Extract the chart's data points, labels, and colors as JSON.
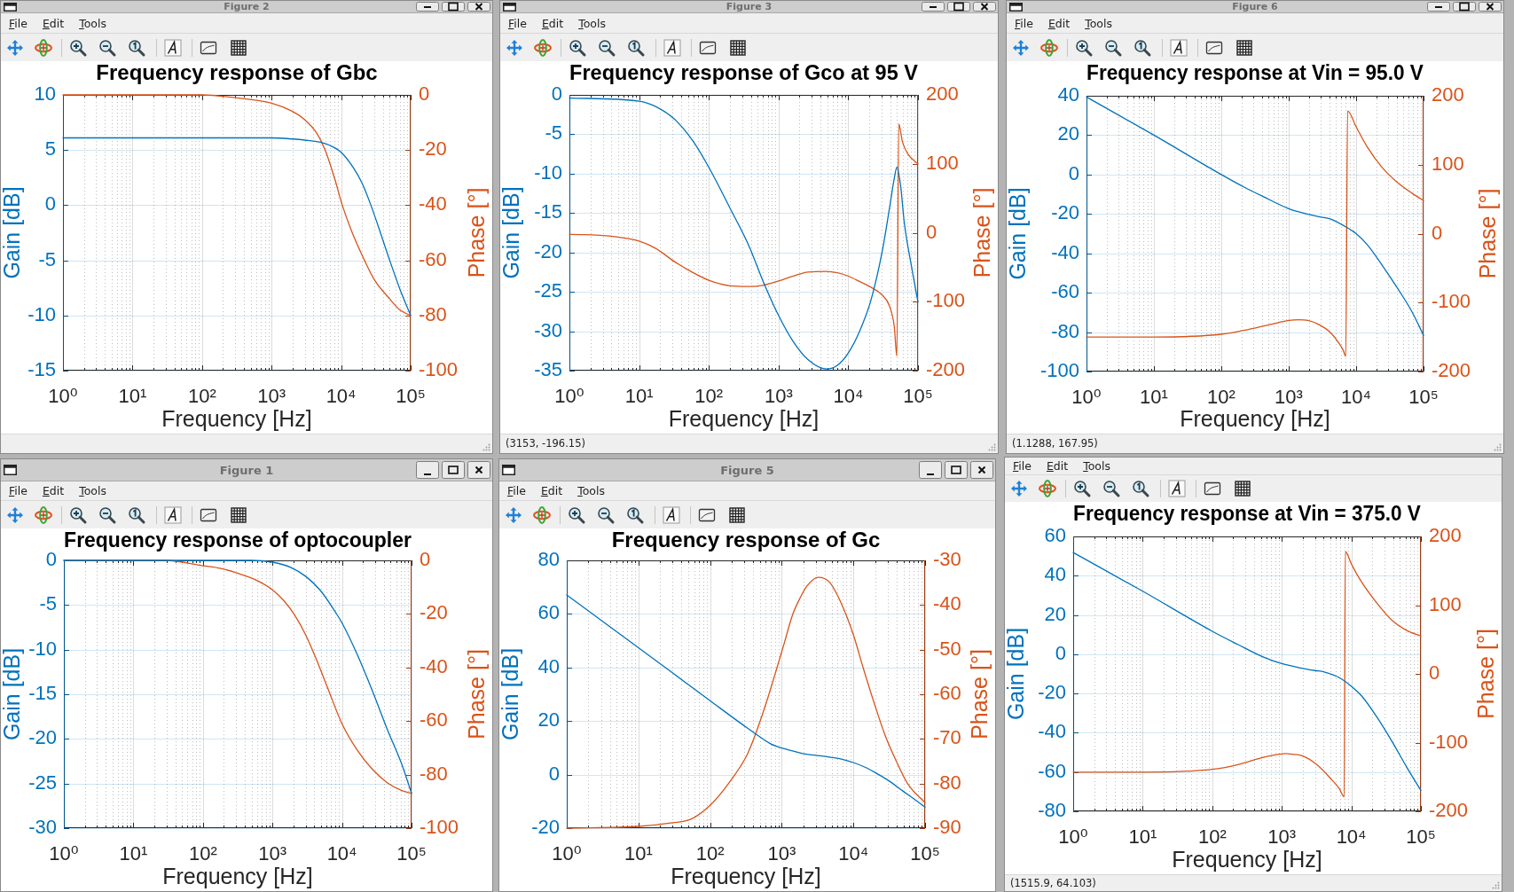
{
  "chart_data": [
    {
      "type": "line",
      "title": "Frequency response of Gbc",
      "xlabel": "Frequency [Hz]",
      "ylabel": "Gain [dB]",
      "y2label": "Phase [°]",
      "annotations": [
        "Figure 2",
        "File",
        "Edit",
        "Tools"
      ],
      "log": "x",
      "grid": true,
      "xlim": [
        1,
        100000
      ],
      "xticks": [
        {
          "value": 1,
          "label": "10⁰"
        },
        {
          "value": 2,
          "label": null
        },
        {
          "value": 3,
          "label": null
        },
        {
          "value": 4,
          "label": null
        },
        {
          "value": 5,
          "label": null
        },
        {
          "value": 6,
          "label": null
        },
        {
          "value": 7,
          "label": null
        },
        {
          "value": 8,
          "label": null
        },
        {
          "value": 9,
          "label": null
        },
        {
          "value": 10,
          "label": "10¹"
        },
        {
          "value": 20,
          "label": null
        },
        {
          "value": 30,
          "label": null
        },
        {
          "value": 40,
          "label": null
        },
        {
          "value": 50,
          "label": null
        },
        {
          "value": 60,
          "label": null
        },
        {
          "value": 70,
          "label": null
        },
        {
          "value": 80,
          "label": null
        },
        {
          "value": 90,
          "label": null
        },
        {
          "value": 100,
          "label": "10²"
        },
        {
          "value": 200,
          "label": null
        },
        {
          "value": 300,
          "label": null
        },
        {
          "value": 400,
          "label": null
        },
        {
          "value": 500,
          "label": null
        },
        {
          "value": 600,
          "label": null
        },
        {
          "value": 700,
          "label": null
        },
        {
          "value": 800,
          "label": null
        },
        {
          "value": 900,
          "label": null
        },
        {
          "value": 1000,
          "label": "10³"
        },
        {
          "value": 2000,
          "label": null
        },
        {
          "value": 3000,
          "label": null
        },
        {
          "value": 4000,
          "label": null
        },
        {
          "value": 5000,
          "label": null
        },
        {
          "value": 6000,
          "label": null
        },
        {
          "value": 7000,
          "label": null
        },
        {
          "value": 8000,
          "label": null
        },
        {
          "value": 9000,
          "label": null
        },
        {
          "value": 10000,
          "label": "10⁴"
        },
        {
          "value": 20000,
          "label": null
        },
        {
          "value": 30000,
          "label": null
        },
        {
          "value": 40000,
          "label": null
        },
        {
          "value": 50000,
          "label": null
        },
        {
          "value": 60000,
          "label": null
        },
        {
          "value": 70000,
          "label": null
        },
        {
          "value": 80000,
          "label": null
        },
        {
          "value": 90000,
          "label": null
        },
        {
          "value": 100000,
          "label": "10⁵"
        }
      ],
      "ylim": [
        -15,
        10
      ],
      "yticks": [
        -15,
        -10,
        -5,
        0,
        5,
        10
      ],
      "y2lim": [
        -100,
        0
      ],
      "y2ticks": [
        -100,
        -80,
        -60,
        -40,
        -20,
        0
      ],
      "series": [
        {
          "color": "#0072bd",
          "x": [
            1,
            100,
            1000,
            2000,
            3000,
            5000,
            7000,
            10000,
            15000,
            20000,
            26800,
            50000,
            70000,
            100000
          ],
          "values": [
            6.1,
            6.1,
            6.1,
            6.0,
            5.9,
            5.7,
            5.4,
            4.8,
            3.4,
            2.0,
            0,
            -5.0,
            -7.6,
            -10.0
          ]
        },
        {
          "color": "#d95319",
          "axis": "y2",
          "x": [
            1,
            100,
            300,
            1000,
            2000,
            3000,
            4500,
            5900,
            8000,
            10400,
            15000,
            21700,
            30000,
            50000,
            70000,
            100000
          ],
          "values": [
            0,
            0,
            -1,
            -3,
            -6,
            -9,
            -14,
            -20,
            -30,
            -40,
            -51,
            -60,
            -67,
            -74,
            -78,
            -80
          ]
        }
      ]
    },
    {
      "type": "line",
      "title": "Frequency response of Gco at 95 V",
      "xlabel": "Frequency [Hz]",
      "ylabel": "Gain [dB]",
      "y2label": "Phase [°]",
      "annotations": [
        "Figure 3",
        "File",
        "Edit",
        "Tools",
        "(3153, -196.15)"
      ],
      "log": "x",
      "grid": true,
      "xlim": [
        1,
        100000
      ],
      "xticks": [
        {
          "value": 1,
          "label": "10⁰"
        },
        {
          "value": 2,
          "label": null
        },
        {
          "value": 3,
          "label": null
        },
        {
          "value": 4,
          "label": null
        },
        {
          "value": 5,
          "label": null
        },
        {
          "value": 6,
          "label": null
        },
        {
          "value": 7,
          "label": null
        },
        {
          "value": 8,
          "label": null
        },
        {
          "value": 9,
          "label": null
        },
        {
          "value": 10,
          "label": "10¹"
        },
        {
          "value": 20,
          "label": null
        },
        {
          "value": 30,
          "label": null
        },
        {
          "value": 40,
          "label": null
        },
        {
          "value": 50,
          "label": null
        },
        {
          "value": 60,
          "label": null
        },
        {
          "value": 70,
          "label": null
        },
        {
          "value": 80,
          "label": null
        },
        {
          "value": 90,
          "label": null
        },
        {
          "value": 100,
          "label": "10²"
        },
        {
          "value": 200,
          "label": null
        },
        {
          "value": 300,
          "label": null
        },
        {
          "value": 400,
          "label": null
        },
        {
          "value": 500,
          "label": null
        },
        {
          "value": 600,
          "label": null
        },
        {
          "value": 700,
          "label": null
        },
        {
          "value": 800,
          "label": null
        },
        {
          "value": 900,
          "label": null
        },
        {
          "value": 1000,
          "label": "10³"
        },
        {
          "value": 2000,
          "label": null
        },
        {
          "value": 3000,
          "label": null
        },
        {
          "value": 4000,
          "label": null
        },
        {
          "value": 5000,
          "label": null
        },
        {
          "value": 6000,
          "label": null
        },
        {
          "value": 7000,
          "label": null
        },
        {
          "value": 8000,
          "label": null
        },
        {
          "value": 9000,
          "label": null
        },
        {
          "value": 10000,
          "label": "10⁴"
        },
        {
          "value": 20000,
          "label": null
        },
        {
          "value": 30000,
          "label": null
        },
        {
          "value": 40000,
          "label": null
        },
        {
          "value": 50000,
          "label": null
        },
        {
          "value": 60000,
          "label": null
        },
        {
          "value": 70000,
          "label": null
        },
        {
          "value": 80000,
          "label": null
        },
        {
          "value": 90000,
          "label": null
        },
        {
          "value": 100000,
          "label": "10⁵"
        }
      ],
      "ylim": [
        -35,
        0
      ],
      "yticks": [
        -35,
        -30,
        -25,
        -20,
        -15,
        -10,
        -5,
        0
      ],
      "y2lim": [
        -200,
        200
      ],
      "y2ticks": [
        -200,
        -100,
        0,
        100,
        200
      ],
      "series": [
        {
          "color": "#0072bd",
          "x": [
            1,
            10,
            17.5,
            32.3,
            59.6,
            100,
            202,
            373,
            609,
            1000,
            1620,
            2640,
            4870,
            7030,
            10100,
            14700,
            21100,
            30500,
            39000,
            45700,
            49800,
            56300,
            63600,
            81200,
            100000
          ],
          "values": [
            -0.4,
            -0.8,
            -1.5,
            -3.1,
            -5.9,
            -9.2,
            -14.4,
            -19.1,
            -23.8,
            -28.0,
            -31.3,
            -33.6,
            -34.8,
            -34.3,
            -32.7,
            -29.9,
            -26.1,
            -20.0,
            -14.4,
            -10.6,
            -9.2,
            -11.5,
            -16.2,
            -21.9,
            -26.3
          ]
        },
        {
          "color": "#d95319",
          "axis": "y2",
          "x": [
            1,
            4,
            10,
            17.5,
            32.3,
            59.6,
            100,
            202,
            373,
            609,
            1000,
            1620,
            2640,
            4870,
            7030,
            10100,
            14700,
            21100,
            30500,
            39000,
            45700,
            49800,
            53000,
            59800,
            71900,
            100000
          ],
          "values": [
            -2,
            -5,
            -12,
            -23,
            -42,
            -58,
            -69,
            -77,
            -78,
            -76,
            -70,
            -63,
            -57,
            -56,
            -58,
            -63,
            -71,
            -79,
            -90,
            -106,
            -136,
            -179,
            158,
            132,
            114,
            100
          ]
        }
      ]
    },
    {
      "type": "line",
      "title": "Frequency response at Vin = 95.0 V",
      "xlabel": "Frequency [Hz]",
      "ylabel": "Gain [dB]",
      "y2label": "Phase [°]",
      "annotations": [
        "Figure 6",
        "File",
        "Edit",
        "Tools",
        "(1.1288, 167.95)"
      ],
      "log": "x",
      "grid": true,
      "xlim": [
        1,
        100000
      ],
      "xticks": [
        {
          "value": 1,
          "label": "10⁰"
        },
        {
          "value": 2,
          "label": null
        },
        {
          "value": 3,
          "label": null
        },
        {
          "value": 4,
          "label": null
        },
        {
          "value": 5,
          "label": null
        },
        {
          "value": 6,
          "label": null
        },
        {
          "value": 7,
          "label": null
        },
        {
          "value": 8,
          "label": null
        },
        {
          "value": 9,
          "label": null
        },
        {
          "value": 10,
          "label": "10¹"
        },
        {
          "value": 20,
          "label": null
        },
        {
          "value": 30,
          "label": null
        },
        {
          "value": 40,
          "label": null
        },
        {
          "value": 50,
          "label": null
        },
        {
          "value": 60,
          "label": null
        },
        {
          "value": 70,
          "label": null
        },
        {
          "value": 80,
          "label": null
        },
        {
          "value": 90,
          "label": null
        },
        {
          "value": 100,
          "label": "10²"
        },
        {
          "value": 200,
          "label": null
        },
        {
          "value": 300,
          "label": null
        },
        {
          "value": 400,
          "label": null
        },
        {
          "value": 500,
          "label": null
        },
        {
          "value": 600,
          "label": null
        },
        {
          "value": 700,
          "label": null
        },
        {
          "value": 800,
          "label": null
        },
        {
          "value": 900,
          "label": null
        },
        {
          "value": 1000,
          "label": "10³"
        },
        {
          "value": 2000,
          "label": null
        },
        {
          "value": 3000,
          "label": null
        },
        {
          "value": 4000,
          "label": null
        },
        {
          "value": 5000,
          "label": null
        },
        {
          "value": 6000,
          "label": null
        },
        {
          "value": 7000,
          "label": null
        },
        {
          "value": 8000,
          "label": null
        },
        {
          "value": 9000,
          "label": null
        },
        {
          "value": 10000,
          "label": "10⁴"
        },
        {
          "value": 20000,
          "label": null
        },
        {
          "value": 30000,
          "label": null
        },
        {
          "value": 40000,
          "label": null
        },
        {
          "value": 50000,
          "label": null
        },
        {
          "value": 60000,
          "label": null
        },
        {
          "value": 70000,
          "label": null
        },
        {
          "value": 80000,
          "label": null
        },
        {
          "value": 90000,
          "label": null
        },
        {
          "value": 100000,
          "label": "10⁵"
        }
      ],
      "ylim": [
        -100,
        40
      ],
      "yticks": [
        -100,
        -80,
        -60,
        -40,
        -20,
        0,
        20,
        40
      ],
      "y2lim": [
        -200,
        200
      ],
      "y2ticks": [
        -200,
        -100,
        0,
        100,
        200
      ],
      "series": [
        {
          "color": "#0072bd",
          "x": [
            1,
            10,
            100,
            224,
            423,
            1000,
            1930,
            3000,
            4120,
            6840,
            10000,
            14600,
            24300,
            40200,
            66700,
            100000
          ],
          "values": [
            39.4,
            20,
            0,
            -6.6,
            -11.3,
            -17.3,
            -20.1,
            -21.6,
            -22.5,
            -26.3,
            -30,
            -35.6,
            -46,
            -57.2,
            -69.4,
            -81.6
          ]
        },
        {
          "color": "#d95319",
          "axis": "y2",
          "x": [
            1,
            10,
            100,
            224,
            423,
            702,
            1000,
            1406,
            1930,
            2820,
            4120,
            5300,
            6430,
            7020,
            7480,
            10000,
            14600,
            24300,
            40200,
            66700,
            100000
          ],
          "values": [
            -150,
            -150,
            -146,
            -140,
            -134,
            -129,
            -126,
            -125,
            -126,
            -132,
            -143,
            -156,
            -169,
            -178,
            178,
            155,
            126,
            96,
            75,
            59,
            48
          ]
        }
      ]
    },
    {
      "type": "line",
      "title": "Frequency response of optocoupler",
      "xlabel": "Frequency [Hz]",
      "ylabel": "Gain [dB]",
      "y2label": "Phase [°]",
      "annotations": [
        "Figure 1",
        "File",
        "Edit",
        "Tools"
      ],
      "log": "x",
      "grid": true,
      "xlim": [
        1,
        100000
      ],
      "xticks": [
        {
          "value": 1,
          "label": "10⁰"
        },
        {
          "value": 2,
          "label": null
        },
        {
          "value": 3,
          "label": null
        },
        {
          "value": 4,
          "label": null
        },
        {
          "value": 5,
          "label": null
        },
        {
          "value": 6,
          "label": null
        },
        {
          "value": 7,
          "label": null
        },
        {
          "value": 8,
          "label": null
        },
        {
          "value": 9,
          "label": null
        },
        {
          "value": 10,
          "label": "10¹"
        },
        {
          "value": 20,
          "label": null
        },
        {
          "value": 30,
          "label": null
        },
        {
          "value": 40,
          "label": null
        },
        {
          "value": 50,
          "label": null
        },
        {
          "value": 60,
          "label": null
        },
        {
          "value": 70,
          "label": null
        },
        {
          "value": 80,
          "label": null
        },
        {
          "value": 90,
          "label": null
        },
        {
          "value": 100,
          "label": "10²"
        },
        {
          "value": 200,
          "label": null
        },
        {
          "value": 300,
          "label": null
        },
        {
          "value": 400,
          "label": null
        },
        {
          "value": 500,
          "label": null
        },
        {
          "value": 600,
          "label": null
        },
        {
          "value": 700,
          "label": null
        },
        {
          "value": 800,
          "label": null
        },
        {
          "value": 900,
          "label": null
        },
        {
          "value": 1000,
          "label": "10³"
        },
        {
          "value": 2000,
          "label": null
        },
        {
          "value": 3000,
          "label": null
        },
        {
          "value": 4000,
          "label": null
        },
        {
          "value": 5000,
          "label": null
        },
        {
          "value": 6000,
          "label": null
        },
        {
          "value": 7000,
          "label": null
        },
        {
          "value": 8000,
          "label": null
        },
        {
          "value": 9000,
          "label": null
        },
        {
          "value": 10000,
          "label": "10⁴"
        },
        {
          "value": 20000,
          "label": null
        },
        {
          "value": 30000,
          "label": null
        },
        {
          "value": 40000,
          "label": null
        },
        {
          "value": 50000,
          "label": null
        },
        {
          "value": 60000,
          "label": null
        },
        {
          "value": 70000,
          "label": null
        },
        {
          "value": 80000,
          "label": null
        },
        {
          "value": 90000,
          "label": null
        },
        {
          "value": 100000,
          "label": "10⁵"
        }
      ],
      "ylim": [
        -30,
        0
      ],
      "yticks": [
        -30,
        -25,
        -20,
        -15,
        -10,
        -5,
        0
      ],
      "y2lim": [
        -100,
        0
      ],
      "y2ticks": [
        -100,
        -80,
        -60,
        -40,
        -20,
        0
      ],
      "series": [
        {
          "color": "#0072bd",
          "x": [
            1,
            100,
            500,
            1000,
            1850,
            3020,
            4930,
            8040,
            10000,
            16700,
            27300,
            44600,
            72800,
            100000
          ],
          "values": [
            0,
            0,
            0,
            -0.2,
            -0.8,
            -1.8,
            -3.4,
            -5.8,
            -7.0,
            -10.6,
            -14.6,
            -18.9,
            -22.9,
            -26.1
          ]
        },
        {
          "color": "#d95319",
          "axis": "y2",
          "x": [
            1,
            10,
            28.9,
            100,
            181,
            334,
            545,
            1000,
            1450,
            2095,
            3020,
            4360,
            6300,
            10000,
            16700,
            27300,
            44600,
            72800,
            100000
          ],
          "values": [
            0,
            0,
            0,
            -2,
            -3,
            -5,
            -7,
            -11,
            -15,
            -20.5,
            -28,
            -37.5,
            -48,
            -61,
            -71,
            -78,
            -83,
            -86,
            -87
          ]
        }
      ]
    },
    {
      "type": "line",
      "title": "Frequency response of Gc",
      "xlabel": "Frequency [Hz]",
      "ylabel": "Gain [dB]",
      "y2label": "Phase [°]",
      "annotations": [
        "Figure 5",
        "File",
        "Edit",
        "Tools"
      ],
      "log": "x",
      "grid": true,
      "xlim": [
        1,
        100000
      ],
      "xticks": [
        {
          "value": 1,
          "label": "10⁰"
        },
        {
          "value": 2,
          "label": null
        },
        {
          "value": 3,
          "label": null
        },
        {
          "value": 4,
          "label": null
        },
        {
          "value": 5,
          "label": null
        },
        {
          "value": 6,
          "label": null
        },
        {
          "value": 7,
          "label": null
        },
        {
          "value": 8,
          "label": null
        },
        {
          "value": 9,
          "label": null
        },
        {
          "value": 10,
          "label": "10¹"
        },
        {
          "value": 20,
          "label": null
        },
        {
          "value": 30,
          "label": null
        },
        {
          "value": 40,
          "label": null
        },
        {
          "value": 50,
          "label": null
        },
        {
          "value": 60,
          "label": null
        },
        {
          "value": 70,
          "label": null
        },
        {
          "value": 80,
          "label": null
        },
        {
          "value": 90,
          "label": null
        },
        {
          "value": 100,
          "label": "10²"
        },
        {
          "value": 200,
          "label": null
        },
        {
          "value": 300,
          "label": null
        },
        {
          "value": 400,
          "label": null
        },
        {
          "value": 500,
          "label": null
        },
        {
          "value": 600,
          "label": null
        },
        {
          "value": 700,
          "label": null
        },
        {
          "value": 800,
          "label": null
        },
        {
          "value": 900,
          "label": null
        },
        {
          "value": 1000,
          "label": "10³"
        },
        {
          "value": 2000,
          "label": null
        },
        {
          "value": 3000,
          "label": null
        },
        {
          "value": 4000,
          "label": null
        },
        {
          "value": 5000,
          "label": null
        },
        {
          "value": 6000,
          "label": null
        },
        {
          "value": 7000,
          "label": null
        },
        {
          "value": 8000,
          "label": null
        },
        {
          "value": 9000,
          "label": null
        },
        {
          "value": 10000,
          "label": "10⁴"
        },
        {
          "value": 20000,
          "label": null
        },
        {
          "value": 30000,
          "label": null
        },
        {
          "value": 40000,
          "label": null
        },
        {
          "value": 50000,
          "label": null
        },
        {
          "value": 60000,
          "label": null
        },
        {
          "value": 70000,
          "label": null
        },
        {
          "value": 80000,
          "label": null
        },
        {
          "value": 90000,
          "label": null
        },
        {
          "value": 100000,
          "label": "10⁵"
        }
      ],
      "ylim": [
        -20,
        80
      ],
      "yticks": [
        -20,
        0,
        20,
        40,
        60,
        80
      ],
      "y2lim": [
        -90,
        -30
      ],
      "y2ticks": [
        -90,
        -80,
        -70,
        -60,
        -50,
        -40,
        -30
      ],
      "series": [
        {
          "color": "#0072bd",
          "x": [
            1,
            10,
            100,
            300,
            500,
            700,
            1000,
            1500,
            2000,
            3000,
            5000,
            7000,
            10000,
            15000,
            20000,
            30000,
            50000,
            70000,
            100000
          ],
          "values": [
            67.1,
            47.4,
            27.6,
            18.2,
            14.0,
            11.5,
            9.9,
            8.7,
            7.8,
            7.2,
            6.4,
            5.7,
            4.5,
            2.6,
            0.8,
            -2.0,
            -6.3,
            -9.1,
            -12.2
          ]
        },
        {
          "color": "#d95319",
          "axis": "y2",
          "x": [
            1,
            10,
            30,
            54,
            100,
            181,
            330,
            420,
            600,
            864,
            1100,
            1400,
            1780,
            2260,
            3240,
            4650,
            6670,
            10000,
            13700,
            19700,
            28300,
            40500,
            58000,
            100000
          ],
          "values": [
            -90,
            -89.6,
            -88.8,
            -88,
            -84.9,
            -80,
            -73.5,
            -69.4,
            -62.2,
            -53.9,
            -48.2,
            -42.4,
            -38.6,
            -35.7,
            -33.8,
            -34.9,
            -39.4,
            -46.7,
            -54.1,
            -62.2,
            -69.6,
            -75.3,
            -80.2,
            -84.3
          ]
        }
      ]
    },
    {
      "type": "line",
      "title": "Frequency response at Vin = 375.0 V",
      "xlabel": "Frequency [Hz]",
      "ylabel": "Gain [dB]",
      "y2label": "Phase [°]",
      "annotations": [
        "File",
        "Edit",
        "Tools",
        "(1515.9, 64.103)"
      ],
      "log": "x",
      "grid": true,
      "xlim": [
        1,
        100000
      ],
      "xticks": [
        {
          "value": 1,
          "label": "10⁰"
        },
        {
          "value": 2,
          "label": null
        },
        {
          "value": 3,
          "label": null
        },
        {
          "value": 4,
          "label": null
        },
        {
          "value": 5,
          "label": null
        },
        {
          "value": 6,
          "label": null
        },
        {
          "value": 7,
          "label": null
        },
        {
          "value": 8,
          "label": null
        },
        {
          "value": 9,
          "label": null
        },
        {
          "value": 10,
          "label": "10¹"
        },
        {
          "value": 20,
          "label": null
        },
        {
          "value": 30,
          "label": null
        },
        {
          "value": 40,
          "label": null
        },
        {
          "value": 50,
          "label": null
        },
        {
          "value": 60,
          "label": null
        },
        {
          "value": 70,
          "label": null
        },
        {
          "value": 80,
          "label": null
        },
        {
          "value": 90,
          "label": null
        },
        {
          "value": 100,
          "label": "10²"
        },
        {
          "value": 200,
          "label": null
        },
        {
          "value": 300,
          "label": null
        },
        {
          "value": 400,
          "label": null
        },
        {
          "value": 500,
          "label": null
        },
        {
          "value": 600,
          "label": null
        },
        {
          "value": 700,
          "label": null
        },
        {
          "value": 800,
          "label": null
        },
        {
          "value": 900,
          "label": null
        },
        {
          "value": 1000,
          "label": "10³"
        },
        {
          "value": 2000,
          "label": null
        },
        {
          "value": 3000,
          "label": null
        },
        {
          "value": 4000,
          "label": null
        },
        {
          "value": 5000,
          "label": null
        },
        {
          "value": 6000,
          "label": null
        },
        {
          "value": 7000,
          "label": null
        },
        {
          "value": 8000,
          "label": null
        },
        {
          "value": 9000,
          "label": null
        },
        {
          "value": 10000,
          "label": "10⁴"
        },
        {
          "value": 20000,
          "label": null
        },
        {
          "value": 30000,
          "label": null
        },
        {
          "value": 40000,
          "label": null
        },
        {
          "value": 50000,
          "label": null
        },
        {
          "value": 60000,
          "label": null
        },
        {
          "value": 70000,
          "label": null
        },
        {
          "value": 80000,
          "label": null
        },
        {
          "value": 90000,
          "label": null
        },
        {
          "value": 100000,
          "label": "10⁵"
        }
      ],
      "ylim": [
        -80,
        60
      ],
      "yticks": [
        -80,
        -60,
        -40,
        -20,
        0,
        20,
        40,
        60
      ],
      "y2lim": [
        -200,
        200
      ],
      "y2ticks": [
        -200,
        -100,
        0,
        100,
        200
      ],
      "series": [
        {
          "color": "#0072bd",
          "x": [
            1,
            10,
            100,
            233,
            557,
            1000,
            1930,
            3000,
            4080,
            6710,
            10000,
            14200,
            23300,
            38400,
            63000,
            100000
          ],
          "values": [
            51.8,
            32.1,
            11.7,
            5.0,
            -1.6,
            -4.8,
            -7.1,
            -8.3,
            -9.0,
            -11.9,
            -16.3,
            -21.4,
            -32,
            -44.4,
            -57.7,
            -69.4
          ]
        },
        {
          "color": "#d95319",
          "axis": "y2",
          "x": [
            1,
            10,
            100,
            233,
            557,
            914,
            1140,
            1416,
            1930,
            3180,
            5230,
            6710,
            7890,
            8200,
            10000,
            14200,
            23300,
            38400,
            63000,
            100000
          ],
          "values": [
            -143,
            -143,
            -139,
            -132,
            -121,
            -117,
            -116,
            -117,
            -119,
            -132,
            -154,
            -167,
            -179,
            178,
            160,
            133,
            103,
            78,
            63,
            55
          ]
        }
      ]
    }
  ]
}
